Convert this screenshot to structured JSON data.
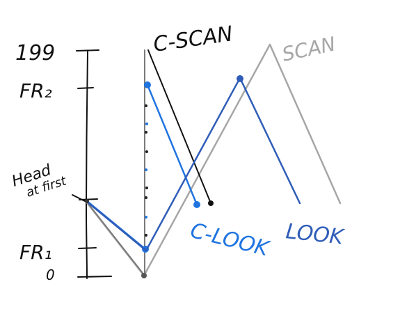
{
  "axis": {
    "tick_labels": {
      "max": "199",
      "fr2": "FR₂",
      "fr1": "FR₁",
      "zero": "0"
    }
  },
  "annotations": {
    "head_line1": "Head",
    "head_line2": "at first"
  },
  "series": {
    "cscan": {
      "label": "C-SCAN",
      "color": "#111111"
    },
    "scan": {
      "label": "SCAN",
      "color": "#a6a6a6"
    },
    "clook": {
      "label": "C-LOOK",
      "color": "#1f74e0"
    },
    "look": {
      "label": "LOOK",
      "color": "#2f5db8"
    }
  },
  "colors": {
    "axis": "#111111",
    "dotted_jump": "#1f74e0"
  }
}
